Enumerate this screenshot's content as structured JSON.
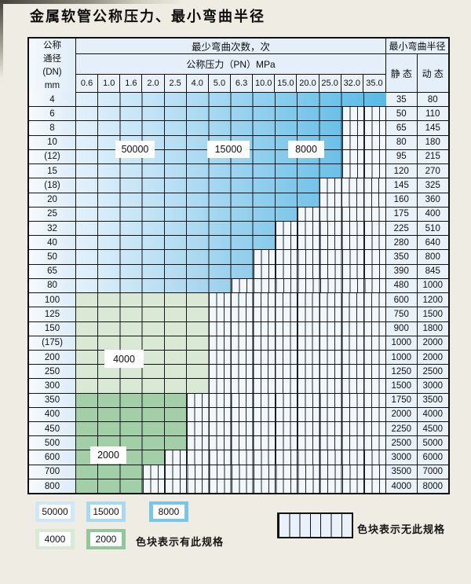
{
  "title": "金属软管公称压力、最小弯曲半径",
  "table": {
    "header": {
      "dn_lines": [
        "公称",
        "通径",
        "(DN)",
        "mm"
      ],
      "cycles_label": "最少弯曲次数，次",
      "pressure_label": "公称压力（PN）MPa",
      "radius_label": "最小弯曲半径",
      "static_label": "静 态",
      "dynamic_label": "动 态",
      "pressures": [
        "0.6",
        "1.0",
        "1.6",
        "2.0",
        "2.5",
        "4.0",
        "5.0",
        "6.3",
        "10.0",
        "15.0",
        "20.0",
        "25.0",
        "32.0",
        "35.0"
      ]
    },
    "rows": [
      {
        "dn": "4",
        "max_pn": "35.0",
        "band": "blue",
        "static": "35",
        "dynamic": "80"
      },
      {
        "dn": "6",
        "max_pn": "25.0",
        "band": "blue",
        "static": "50",
        "dynamic": "110"
      },
      {
        "dn": "8",
        "max_pn": "25.0",
        "band": "blue",
        "static": "65",
        "dynamic": "145"
      },
      {
        "dn": "10",
        "max_pn": "25.0",
        "band": "blue",
        "static": "80",
        "dynamic": "180"
      },
      {
        "dn": "(12)",
        "max_pn": "25.0",
        "band": "blue",
        "static": "95",
        "dynamic": "215"
      },
      {
        "dn": "15",
        "max_pn": "25.0",
        "band": "blue",
        "static": "120",
        "dynamic": "270"
      },
      {
        "dn": "(18)",
        "max_pn": "20.0",
        "band": "blue",
        "static": "145",
        "dynamic": "325"
      },
      {
        "dn": "20",
        "max_pn": "20.0",
        "band": "blue",
        "static": "160",
        "dynamic": "360"
      },
      {
        "dn": "25",
        "max_pn": "15.0",
        "band": "blue",
        "static": "175",
        "dynamic": "400"
      },
      {
        "dn": "32",
        "max_pn": "10.0",
        "band": "blue",
        "static": "225",
        "dynamic": "510"
      },
      {
        "dn": "40",
        "max_pn": "10.0",
        "band": "blue",
        "static": "280",
        "dynamic": "640"
      },
      {
        "dn": "50",
        "max_pn": "6.3",
        "band": "blue",
        "static": "350",
        "dynamic": "800"
      },
      {
        "dn": "65",
        "max_pn": "6.3",
        "band": "blue",
        "static": "390",
        "dynamic": "845"
      },
      {
        "dn": "80",
        "max_pn": "5.0",
        "band": "blue",
        "static": "480",
        "dynamic": "1000"
      },
      {
        "dn": "100",
        "max_pn": "4.0",
        "band": "green-4000",
        "static": "600",
        "dynamic": "1200"
      },
      {
        "dn": "125",
        "max_pn": "4.0",
        "band": "green-4000",
        "static": "750",
        "dynamic": "1500"
      },
      {
        "dn": "150",
        "max_pn": "4.0",
        "band": "green-4000",
        "static": "900",
        "dynamic": "1800"
      },
      {
        "dn": "(175)",
        "max_pn": "4.0",
        "band": "green-4000",
        "static": "1000",
        "dynamic": "2000"
      },
      {
        "dn": "200",
        "max_pn": "4.0",
        "band": "green-4000",
        "static": "1000",
        "dynamic": "2000"
      },
      {
        "dn": "250",
        "max_pn": "4.0",
        "band": "green-4000",
        "static": "1250",
        "dynamic": "2500"
      },
      {
        "dn": "300",
        "max_pn": "4.0",
        "band": "green-4000",
        "static": "1500",
        "dynamic": "3000"
      },
      {
        "dn": "350",
        "max_pn": "2.5",
        "band": "green-2000",
        "static": "1750",
        "dynamic": "3500"
      },
      {
        "dn": "400",
        "max_pn": "2.5",
        "band": "green-2000",
        "static": "2000",
        "dynamic": "4000"
      },
      {
        "dn": "450",
        "max_pn": "2.5",
        "band": "green-2000",
        "static": "2250",
        "dynamic": "4500"
      },
      {
        "dn": "500",
        "max_pn": "2.5",
        "band": "green-2000",
        "static": "2500",
        "dynamic": "5000"
      },
      {
        "dn": "600",
        "max_pn": "2.0",
        "band": "green-2000",
        "static": "3000",
        "dynamic": "6000"
      },
      {
        "dn": "700",
        "max_pn": "1.6",
        "band": "green-2000",
        "static": "3500",
        "dynamic": "7000"
      },
      {
        "dn": "800",
        "max_pn": "1.6",
        "band": "green-2000",
        "static": "4000",
        "dynamic": "8000"
      }
    ]
  },
  "legend": {
    "has_spec_items": [
      {
        "label": "50000",
        "color": "#cfe7f8"
      },
      {
        "label": "15000",
        "color": "#a9d8f2"
      },
      {
        "label": "8000",
        "color": "#7ac5ea"
      },
      {
        "label": "4000",
        "color": "#d8e9d4"
      },
      {
        "label": "2000",
        "color": "#92c899"
      }
    ],
    "has_spec_text": "色块表示有此规格",
    "no_spec_text": "色块表示无此规格"
  },
  "colors": {
    "blue_gradient_start": "#e3f1fb",
    "blue_gradient_end_narrow": "#9bd0ec",
    "blue_gradient_end_wide": "#58bae6",
    "green_4000": "#d9e9d5",
    "green_2000": "#a2cfa8",
    "grid_line": "#15181d",
    "striped_bg": "#f2f7fc"
  }
}
